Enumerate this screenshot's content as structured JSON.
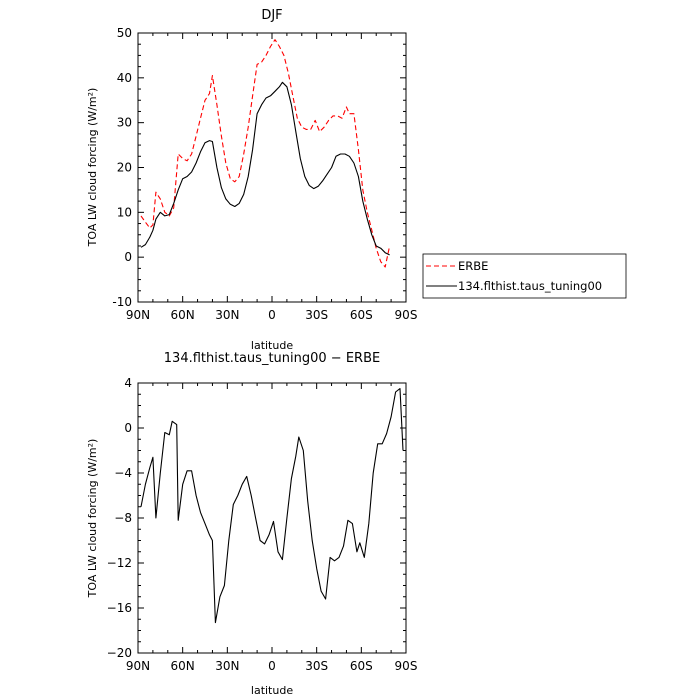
{
  "chart_data": [
    {
      "type": "line",
      "title": "DJF",
      "xlabel": "latitude",
      "ylabel": "TOA LW cloud forcing (W/m²)",
      "xlim": [
        90,
        -90
      ],
      "ylim": [
        -10,
        50
      ],
      "x_ticks": [
        90,
        60,
        30,
        0,
        -30,
        -60,
        -90
      ],
      "x_tick_labels": [
        "90N",
        "60N",
        "30N",
        "0",
        "30S",
        "60S",
        "90S"
      ],
      "y_ticks": [
        -10,
        0,
        10,
        20,
        30,
        40,
        50
      ],
      "y_tick_labels": [
        "-10",
        "0",
        "10",
        "20",
        "30",
        "40",
        "50"
      ],
      "legend_position": "right",
      "series": [
        {
          "name": "ERBE",
          "color": "#ff0000",
          "dash": "dashed",
          "points": [
            [
              88,
              9.2
            ],
            [
              85,
              7.8
            ],
            [
              82,
              6.5
            ],
            [
              80,
              7.2
            ],
            [
              78,
              14.5
            ],
            [
              75,
              13.0
            ],
            [
              72,
              10.0
            ],
            [
              69,
              9.2
            ],
            [
              66,
              11.0
            ],
            [
              63,
              23.0
            ],
            [
              60,
              22.0
            ],
            [
              57,
              21.5
            ],
            [
              54,
              23.0
            ],
            [
              51,
              27.0
            ],
            [
              48,
              31.0
            ],
            [
              45,
              35.0
            ],
            [
              42,
              36.5
            ],
            [
              40,
              40.5
            ],
            [
              37,
              34.0
            ],
            [
              34,
              27.0
            ],
            [
              31,
              21.0
            ],
            [
              28,
              17.5
            ],
            [
              25,
              16.8
            ],
            [
              22,
              18.0
            ],
            [
              19,
              23.0
            ],
            [
              16,
              29.0
            ],
            [
              13,
              36.0
            ],
            [
              10,
              43.0
            ],
            [
              7,
              43.5
            ],
            [
              4,
              45.0
            ],
            [
              1,
              47.0
            ],
            [
              -2,
              48.5
            ],
            [
              -5,
              47.0
            ],
            [
              -8,
              45.0
            ],
            [
              -11,
              41.0
            ],
            [
              -14,
              36.0
            ],
            [
              -17,
              31.0
            ],
            [
              -20,
              29.0
            ],
            [
              -23,
              28.5
            ],
            [
              -26,
              28.5
            ],
            [
              -29,
              30.5
            ],
            [
              -32,
              28.0
            ],
            [
              -35,
              29.0
            ],
            [
              -38,
              30.5
            ],
            [
              -41,
              31.5
            ],
            [
              -44,
              31.5
            ],
            [
              -47,
              31.0
            ],
            [
              -50,
              33.5
            ],
            [
              -52,
              32.0
            ],
            [
              -55,
              32.0
            ],
            [
              -58,
              24.0
            ],
            [
              -61,
              15.0
            ],
            [
              -64,
              10.0
            ],
            [
              -67,
              6.0
            ],
            [
              -70,
              2.0
            ],
            [
              -73,
              -1.0
            ],
            [
              -76,
              -2.2
            ],
            [
              -79,
              2.5
            ]
          ]
        },
        {
          "name": "134.flthist.taus_tuning00",
          "color": "#000000",
          "dash": "solid",
          "points": [
            [
              88,
              2.2
            ],
            [
              85,
              2.8
            ],
            [
              82,
              4.5
            ],
            [
              80,
              6.0
            ],
            [
              78,
              8.5
            ],
            [
              75,
              10.0
            ],
            [
              72,
              9.2
            ],
            [
              69,
              9.5
            ],
            [
              66,
              12.0
            ],
            [
              63,
              15.0
            ],
            [
              60,
              17.5
            ],
            [
              57,
              18.0
            ],
            [
              54,
              19.0
            ],
            [
              51,
              21.0
            ],
            [
              48,
              23.5
            ],
            [
              45,
              25.5
            ],
            [
              42,
              26.0
            ],
            [
              40,
              25.8
            ],
            [
              37,
              20.0
            ],
            [
              34,
              15.5
            ],
            [
              31,
              13.0
            ],
            [
              28,
              11.8
            ],
            [
              25,
              11.3
            ],
            [
              22,
              12.0
            ],
            [
              19,
              14.0
            ],
            [
              16,
              18.0
            ],
            [
              13,
              24.0
            ],
            [
              10,
              32.0
            ],
            [
              7,
              34.0
            ],
            [
              4,
              35.5
            ],
            [
              1,
              36.0
            ],
            [
              -2,
              37.0
            ],
            [
              -5,
              38.0
            ],
            [
              -7,
              39.0
            ],
            [
              -10,
              38.0
            ],
            [
              -13,
              34.0
            ],
            [
              -16,
              28.0
            ],
            [
              -19,
              22.0
            ],
            [
              -22,
              18.0
            ],
            [
              -25,
              16.0
            ],
            [
              -28,
              15.3
            ],
            [
              -31,
              15.8
            ],
            [
              -34,
              17.0
            ],
            [
              -37,
              18.5
            ],
            [
              -40,
              20.0
            ],
            [
              -43,
              22.5
            ],
            [
              -46,
              23.0
            ],
            [
              -49,
              23.0
            ],
            [
              -52,
              22.5
            ],
            [
              -55,
              21.0
            ],
            [
              -58,
              18.0
            ],
            [
              -61,
              12.5
            ],
            [
              -64,
              8.5
            ],
            [
              -67,
              5.0
            ],
            [
              -70,
              2.5
            ],
            [
              -73,
              2.0
            ],
            [
              -76,
              1.0
            ],
            [
              -79,
              0.5
            ]
          ]
        }
      ]
    },
    {
      "type": "line",
      "title": "134.flthist.taus_tuning00 − ERBE",
      "xlabel": "latitude",
      "ylabel": "TOA LW cloud forcing (W/m²)",
      "xlim": [
        90,
        -90
      ],
      "ylim": [
        -20,
        4
      ],
      "x_ticks": [
        90,
        60,
        30,
        0,
        -30,
        -60,
        -90
      ],
      "x_tick_labels": [
        "90N",
        "60N",
        "30N",
        "0",
        "30S",
        "60S",
        "90S"
      ],
      "y_ticks": [
        -20,
        -16,
        -12,
        -8,
        -4,
        0,
        4
      ],
      "y_tick_labels": [
        "−20",
        "−16",
        "−12",
        "−8",
        "−4",
        "0",
        "4"
      ],
      "series": [
        {
          "color": "#000000",
          "dash": "solid",
          "points": [
            [
              88,
              -7.0
            ],
            [
              85,
              -5.0
            ],
            [
              82,
              -3.5
            ],
            [
              80,
              -2.6
            ],
            [
              78,
              -8.0
            ],
            [
              75,
              -4.0
            ],
            [
              72,
              -0.4
            ],
            [
              69,
              -0.6
            ],
            [
              67,
              0.6
            ],
            [
              64,
              0.3
            ],
            [
              63,
              -8.2
            ],
            [
              60,
              -5.0
            ],
            [
              57,
              -3.8
            ],
            [
              54,
              -3.8
            ],
            [
              51,
              -6.0
            ],
            [
              48,
              -7.5
            ],
            [
              45,
              -8.5
            ],
            [
              42,
              -9.5
            ],
            [
              40,
              -10.0
            ],
            [
              38,
              -17.3
            ],
            [
              35,
              -15.0
            ],
            [
              32,
              -14.0
            ],
            [
              29,
              -10.0
            ],
            [
              26,
              -6.8
            ],
            [
              23,
              -6.0
            ],
            [
              20,
              -5.0
            ],
            [
              17,
              -4.3
            ],
            [
              14,
              -6.0
            ],
            [
              11,
              -8.0
            ],
            [
              8,
              -10.0
            ],
            [
              5,
              -10.3
            ],
            [
              2,
              -9.5
            ],
            [
              -1,
              -8.3
            ],
            [
              -4,
              -11.0
            ],
            [
              -7,
              -11.7
            ],
            [
              -10,
              -8.0
            ],
            [
              -13,
              -4.5
            ],
            [
              -16,
              -2.5
            ],
            [
              -18,
              -0.8
            ],
            [
              -21,
              -2.0
            ],
            [
              -24,
              -6.5
            ],
            [
              -27,
              -10.0
            ],
            [
              -30,
              -12.5
            ],
            [
              -33,
              -14.5
            ],
            [
              -36,
              -15.2
            ],
            [
              -39,
              -11.5
            ],
            [
              -42,
              -11.8
            ],
            [
              -45,
              -11.5
            ],
            [
              -48,
              -10.5
            ],
            [
              -51,
              -8.2
            ],
            [
              -54,
              -8.5
            ],
            [
              -57,
              -11.0
            ],
            [
              -59,
              -10.2
            ],
            [
              -62,
              -11.5
            ],
            [
              -65,
              -8.5
            ],
            [
              -68,
              -4.0
            ],
            [
              -71,
              -1.4
            ],
            [
              -74,
              -1.4
            ],
            [
              -77,
              -0.5
            ],
            [
              -80,
              1.0
            ],
            [
              -83,
              3.2
            ],
            [
              -86,
              3.5
            ],
            [
              -88,
              -2.0
            ]
          ]
        }
      ]
    }
  ]
}
